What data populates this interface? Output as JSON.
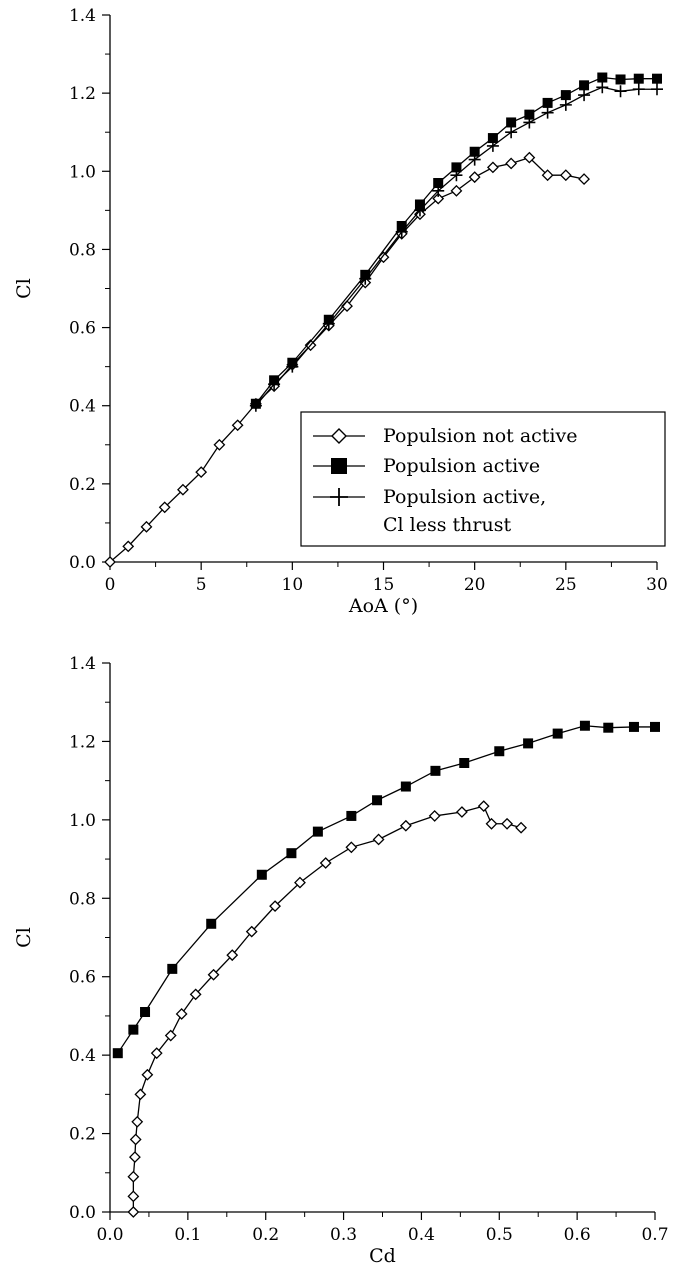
{
  "chart_data": [
    {
      "type": "line",
      "xlabel": "AoA (°)",
      "ylabel": "Cl",
      "xlim": [
        0,
        30
      ],
      "ylim": [
        0,
        1.4
      ],
      "xticks": [
        "0",
        "5",
        "10",
        "15",
        "20",
        "25",
        "30"
      ],
      "yticks": [
        "0.0",
        "0.2",
        "0.4",
        "0.6",
        "0.8",
        "1.0",
        "1.2",
        "1.4"
      ],
      "grid": false,
      "legend_position": "lower-right",
      "series": [
        {
          "name": "Populsion not active",
          "marker": "diamond-open",
          "color": "#000000",
          "x": [
            0,
            1,
            2,
            3,
            4,
            5,
            6,
            7,
            8,
            9,
            10,
            11,
            12,
            13,
            14,
            15,
            16,
            17,
            18,
            19,
            20,
            21,
            22,
            23,
            24,
            25,
            26
          ],
          "y": [
            0.0,
            0.04,
            0.09,
            0.14,
            0.185,
            0.23,
            0.3,
            0.35,
            0.405,
            0.45,
            0.505,
            0.555,
            0.605,
            0.655,
            0.715,
            0.78,
            0.84,
            0.89,
            0.93,
            0.95,
            0.985,
            1.01,
            1.02,
            1.035,
            0.99,
            0.99,
            0.98
          ]
        },
        {
          "name": "Populsion active",
          "marker": "square-filled",
          "color": "#000000",
          "x": [
            8,
            9,
            10,
            12,
            14,
            16,
            17,
            18,
            19,
            20,
            21,
            22,
            23,
            24,
            25,
            26,
            27,
            28,
            29,
            30
          ],
          "y": [
            0.405,
            0.465,
            0.51,
            0.62,
            0.735,
            0.86,
            0.915,
            0.97,
            1.01,
            1.05,
            1.085,
            1.125,
            1.145,
            1.175,
            1.195,
            1.22,
            1.24,
            1.235,
            1.237,
            1.237
          ]
        },
        {
          "name": "Populsion active,",
          "name_line2": "Cl less thrust",
          "marker": "plus",
          "color": "#000000",
          "x": [
            8,
            9,
            10,
            12,
            14,
            16,
            17,
            18,
            19,
            20,
            21,
            22,
            23,
            24,
            25,
            26,
            27,
            28,
            29,
            30
          ],
          "y": [
            0.4,
            0.455,
            0.5,
            0.61,
            0.725,
            0.845,
            0.9,
            0.95,
            0.99,
            1.03,
            1.065,
            1.1,
            1.125,
            1.15,
            1.17,
            1.195,
            1.215,
            1.205,
            1.21,
            1.21
          ]
        }
      ]
    },
    {
      "type": "line",
      "xlabel": "Cd",
      "ylabel": "Cl",
      "xlim": [
        0,
        0.7
      ],
      "ylim": [
        0,
        1.4
      ],
      "xticks": [
        "0.0",
        "0.1",
        "0.2",
        "0.3",
        "0.4",
        "0.5",
        "0.6",
        "0.7"
      ],
      "yticks": [
        "0.0",
        "0.2",
        "0.4",
        "0.6",
        "0.8",
        "1.0",
        "1.2",
        "1.4"
      ],
      "grid": false,
      "series": [
        {
          "marker": "diamond-open",
          "color": "#000000",
          "x": [
            0.03,
            0.03,
            0.03,
            0.032,
            0.033,
            0.035,
            0.039,
            0.048,
            0.06,
            0.078,
            0.092,
            0.11,
            0.133,
            0.157,
            0.182,
            0.212,
            0.244,
            0.277,
            0.31,
            0.345,
            0.38,
            0.417,
            0.452,
            0.48,
            0.49,
            0.51,
            0.528
          ],
          "y": [
            0.0,
            0.04,
            0.09,
            0.14,
            0.185,
            0.23,
            0.3,
            0.35,
            0.405,
            0.45,
            0.505,
            0.555,
            0.605,
            0.655,
            0.715,
            0.78,
            0.84,
            0.89,
            0.93,
            0.95,
            0.985,
            1.01,
            1.02,
            1.035,
            0.99,
            0.99,
            0.98
          ]
        },
        {
          "marker": "square-filled",
          "color": "#000000",
          "x": [
            0.01,
            0.03,
            0.045,
            0.08,
            0.13,
            0.195,
            0.233,
            0.267,
            0.31,
            0.343,
            0.38,
            0.418,
            0.455,
            0.5,
            0.537,
            0.575,
            0.61,
            0.64,
            0.673,
            0.7
          ],
          "y": [
            0.405,
            0.465,
            0.51,
            0.62,
            0.735,
            0.86,
            0.915,
            0.97,
            1.01,
            1.05,
            1.085,
            1.125,
            1.145,
            1.175,
            1.195,
            1.22,
            1.24,
            1.235,
            1.237,
            1.237
          ]
        }
      ]
    }
  ]
}
